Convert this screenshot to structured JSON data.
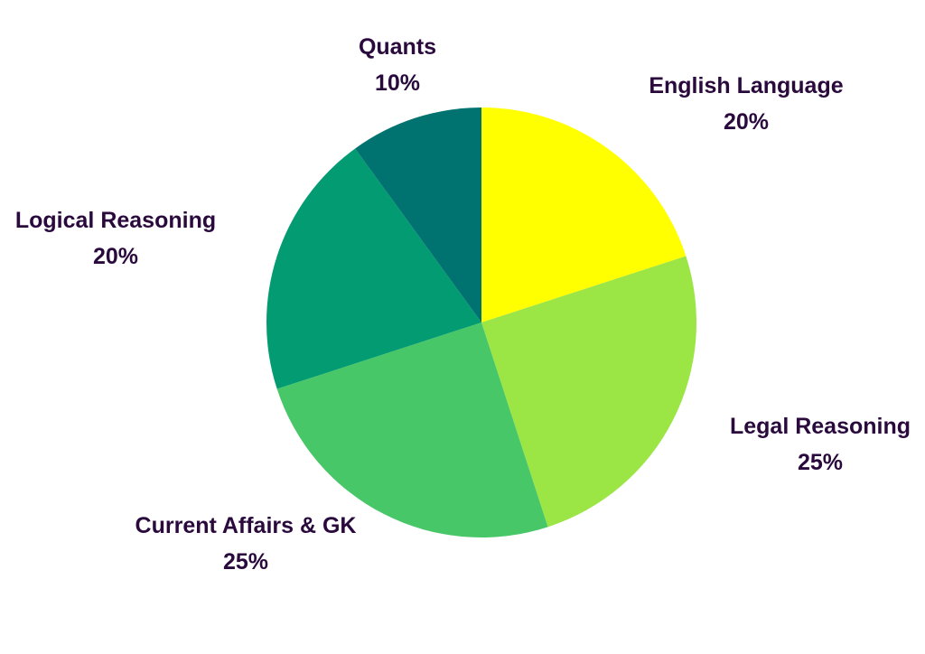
{
  "chart_data": {
    "type": "pie",
    "categories": [
      "English Language",
      "Legal Reasoning",
      "Current Affairs & GK",
      "Logical Reasoning",
      "Quants"
    ],
    "values": [
      20,
      25,
      25,
      20,
      10
    ],
    "value_labels": [
      "20%",
      "25%",
      "25%",
      "20%",
      "10%"
    ],
    "colors": [
      "#ffff00",
      "#9be545",
      "#48c768",
      "#039b72",
      "#007371"
    ]
  }
}
